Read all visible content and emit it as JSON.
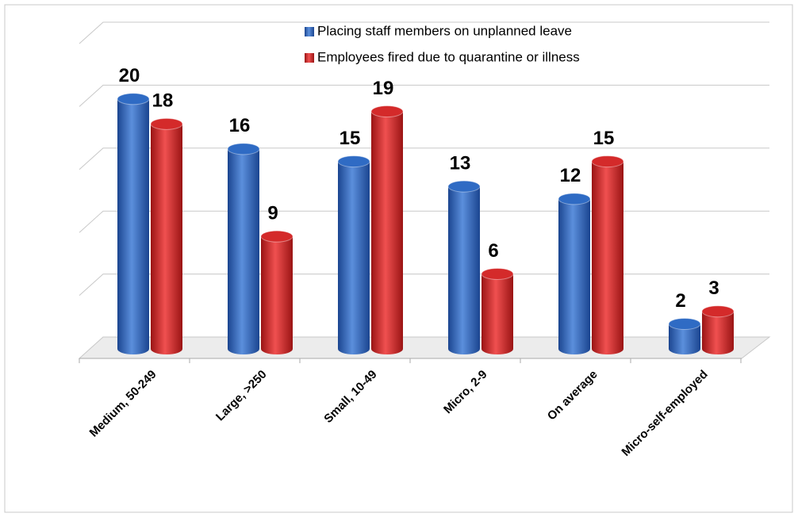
{
  "chart_data": {
    "type": "bar",
    "categories": [
      "Medium, 50-249",
      "Large, >250",
      "Small, 10-49",
      "Micro, 2-9",
      "On average",
      "Micro-self-employed"
    ],
    "series": [
      {
        "name": "Placing staff members on unplanned leave",
        "color": "#2f6bc4",
        "values": [
          20,
          16,
          15,
          13,
          12,
          2
        ]
      },
      {
        "name": "Employees fired due to quarantine or illness",
        "color": "#d42a2a",
        "values": [
          18,
          9,
          19,
          6,
          15,
          3
        ]
      }
    ],
    "ylim": [
      0,
      25
    ],
    "yticks": [
      0,
      5,
      10,
      15,
      20,
      25
    ],
    "grid": true
  }
}
